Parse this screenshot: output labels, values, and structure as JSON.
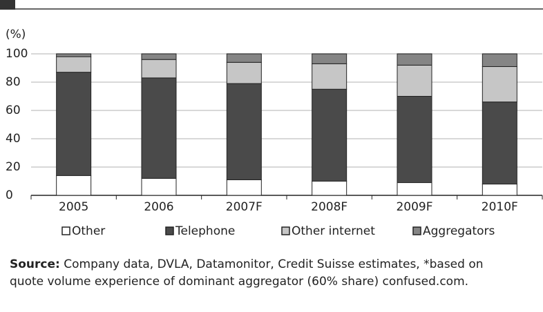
{
  "chart_data": {
    "type": "stacked_bar",
    "y_unit_label": "(%)",
    "categories": [
      "2005",
      "2006",
      "2007F",
      "2008F",
      "2009F",
      "2010F"
    ],
    "series": [
      {
        "name": "Other",
        "color": "#ffffff",
        "values": [
          14,
          12,
          11,
          10,
          9,
          8
        ]
      },
      {
        "name": "Telephone",
        "color": "#4a4a4a",
        "values": [
          73,
          71,
          68,
          65,
          61,
          58
        ]
      },
      {
        "name": "Other internet",
        "color": "#c6c6c6",
        "values": [
          11,
          13,
          15,
          18,
          22,
          25
        ]
      },
      {
        "name": "Aggregators",
        "color": "#858585",
        "values": [
          2,
          4,
          6,
          7,
          8,
          9
        ]
      }
    ],
    "ylim": [
      0,
      100
    ],
    "yticks": [
      0,
      20,
      40,
      60,
      80,
      100
    ],
    "grid": true,
    "legend": "bottom"
  },
  "source_label": "Source:",
  "source_lines": [
    "Company data, DVLA, Datamonitor, Credit Suisse estimates, *based on",
    "quote volume experience of dominant aggregator (60% share) confused.com."
  ]
}
